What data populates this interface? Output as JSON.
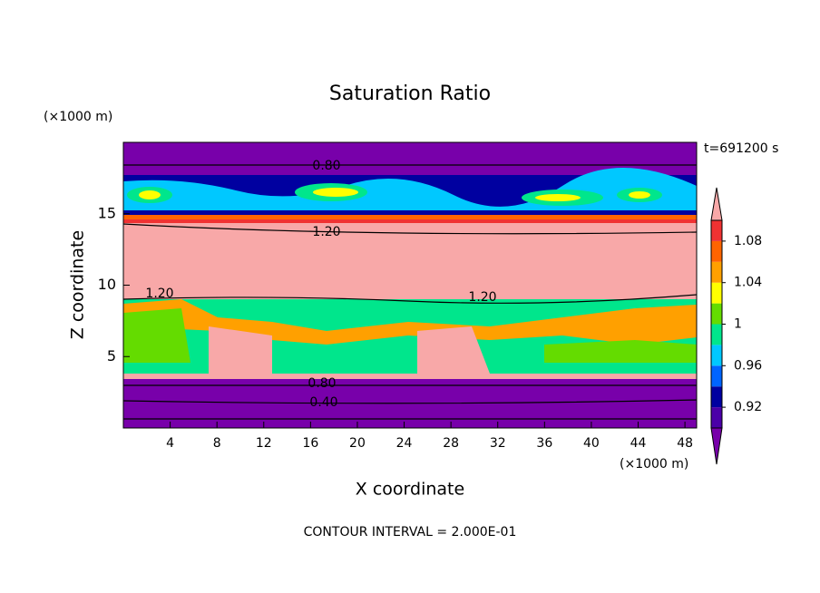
{
  "chart_data": {
    "type": "contour",
    "title": "Saturation Ratio",
    "x_label": "X coordinate",
    "y_label": "Z coordinate",
    "x_unit": "(×1000 m)",
    "y_unit": "(×1000 m)",
    "time_label": "t=691200 s",
    "footer": "CONTOUR INTERVAL = 2.000E-01",
    "xlim": [
      0,
      49
    ],
    "ylim": [
      0,
      20
    ],
    "xticks": [
      4,
      8,
      12,
      16,
      20,
      24,
      28,
      32,
      36,
      40,
      44,
      48
    ],
    "yticks": [
      5,
      10,
      15
    ],
    "contour_labels": [
      "0.80",
      "1.20",
      "1.20",
      "1.20",
      "0.80",
      "0.40"
    ],
    "colorbar": {
      "levels": [
        0.9,
        0.92,
        0.94,
        0.96,
        0.98,
        1,
        1.02,
        1.04,
        1.06,
        1.08,
        1.1
      ],
      "colors": [
        "#4b00a8",
        "#0000a0",
        "#0064ff",
        "#00c8ff",
        "#00e68c",
        "#64dc00",
        "#ffff00",
        "#ffa000",
        "#ff6400",
        "#f03232"
      ],
      "under_color": "#7800aa",
      "over_color": "#f8a8a8",
      "ticks": [
        0.92,
        0.96,
        1,
        1.04,
        1.08
      ]
    }
  }
}
